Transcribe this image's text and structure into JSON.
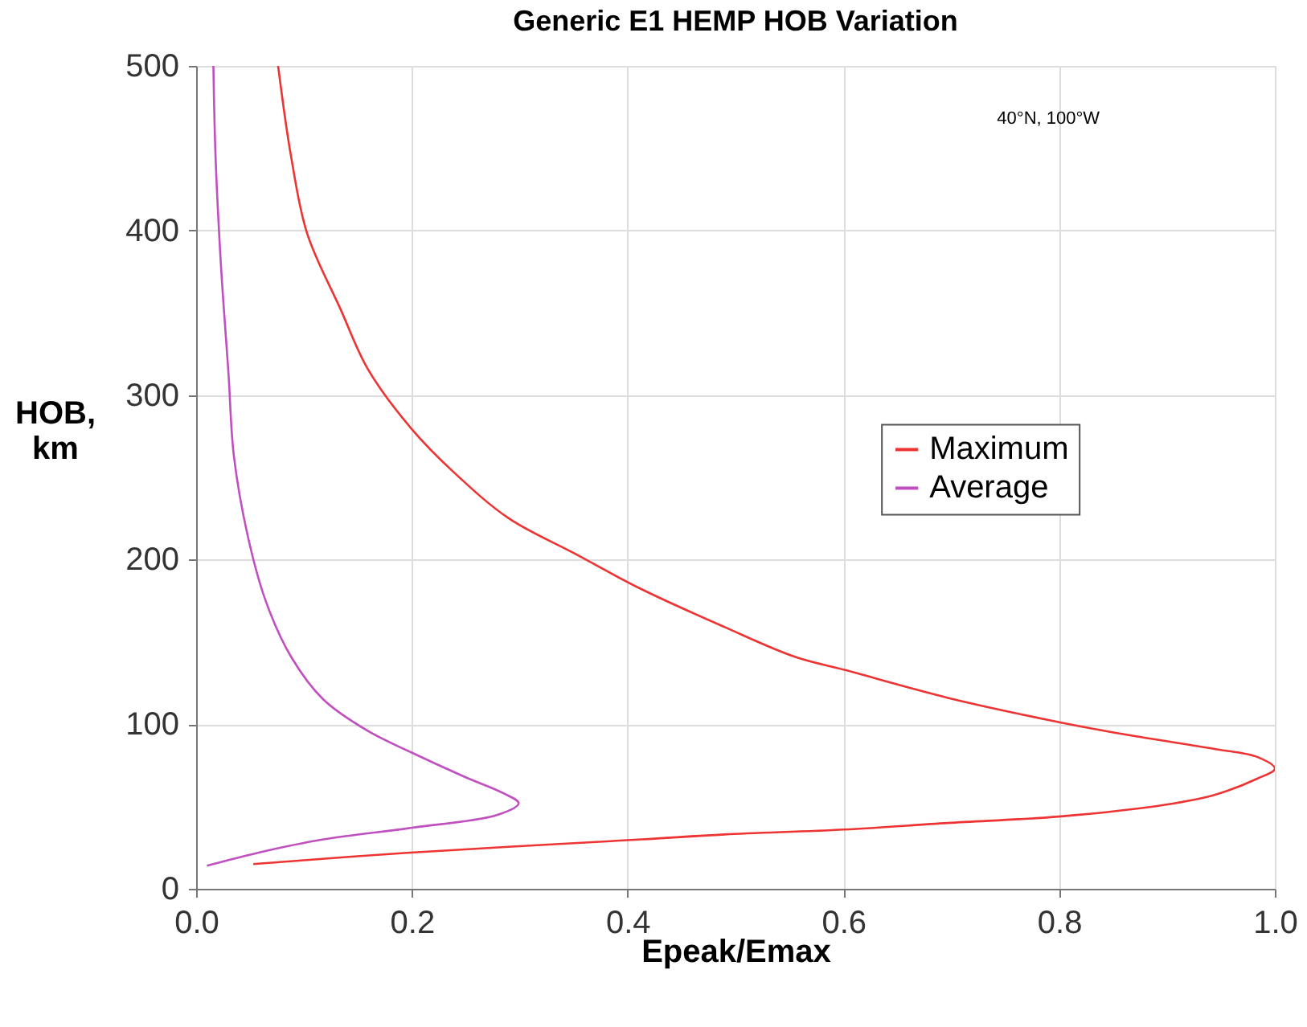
{
  "chart_data": {
    "type": "line",
    "title": "Generic E1 HEMP HOB Variation",
    "xlabel": "Epeak/Emax",
    "ylabel": "HOB, km",
    "xlim": [
      0,
      1
    ],
    "xticks": [
      {
        "value": 0,
        "label": "0.0"
      },
      0.2,
      0.4,
      0.6,
      0.8,
      {
        "value": 1,
        "label": "1.0"
      }
    ],
    "ylim": [
      0,
      500
    ],
    "yticks": [
      0,
      100,
      200,
      300,
      400,
      500
    ],
    "grid": true,
    "legend": "right",
    "marker": "none",
    "line_style": "solid",
    "annotations": [
      "40°N, 100°W"
    ],
    "series": [
      {
        "name": "Maximum",
        "color": "#ee3333",
        "x": [
          0.076,
          0.088,
          0.103,
          0.134,
          0.159,
          0.199,
          0.239,
          0.29,
          0.35,
          0.413,
          0.49,
          0.555,
          0.601,
          0.697,
          0.802,
          0.868,
          0.944,
          0.984,
          1.0,
          0.984,
          0.944,
          0.898,
          0.802,
          0.697,
          0.601,
          0.49,
          0.413,
          0.199,
          0.053
        ],
        "values": [
          500,
          445,
          398,
          352,
          316,
          280,
          253,
          225,
          204,
          182,
          159,
          141,
          133,
          116,
          101,
          93,
          85,
          80,
          73,
          67,
          57,
          51,
          44,
          40,
          36,
          33,
          30,
          22,
          15
        ]
      },
      {
        "name": "Average",
        "color": "#c050c0",
        "x": [
          0.016,
          0.018,
          0.023,
          0.03,
          0.035,
          0.048,
          0.065,
          0.088,
          0.118,
          0.159,
          0.199,
          0.249,
          0.285,
          0.299,
          0.28,
          0.199,
          0.118,
          0.058,
          0.01
        ],
        "values": [
          500,
          445,
          379,
          313,
          263,
          214,
          174,
          141,
          115,
          96,
          83,
          68,
          58,
          52,
          45,
          37,
          30,
          22,
          14
        ]
      }
    ]
  }
}
